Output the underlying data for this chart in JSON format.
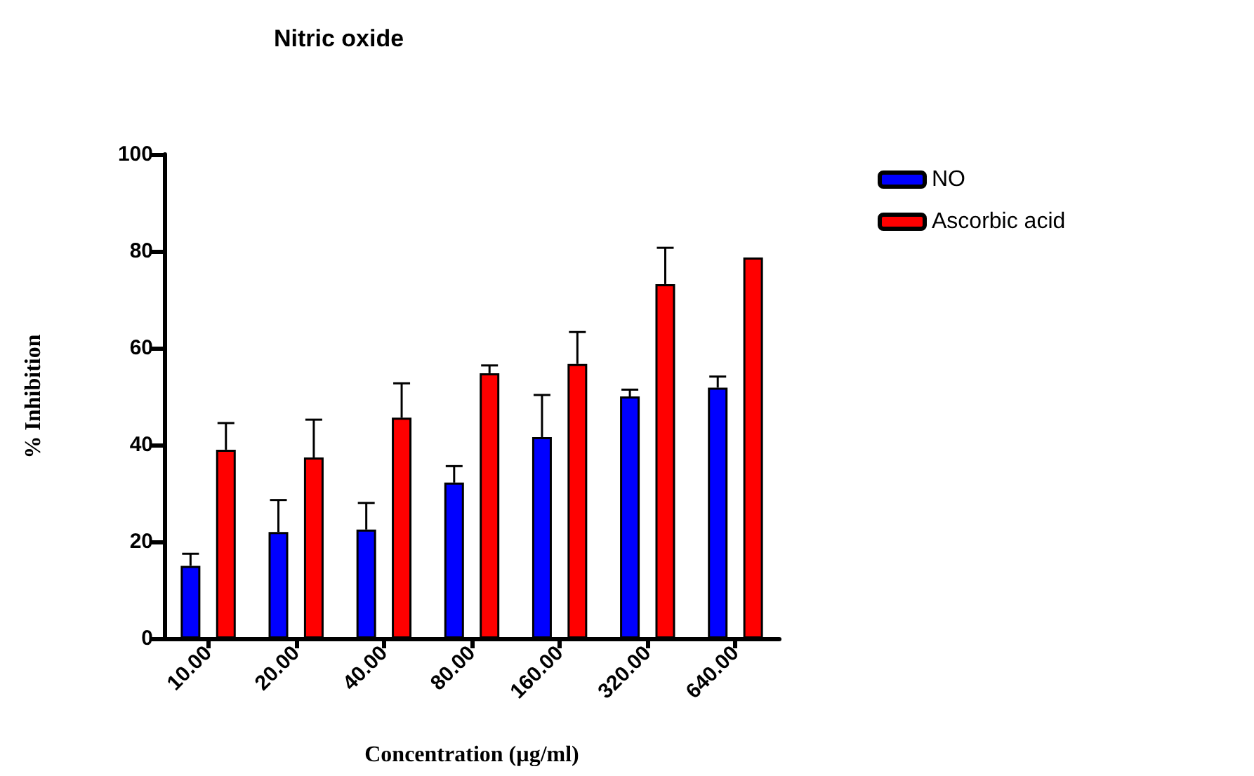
{
  "chart_data": {
    "type": "bar",
    "title": "Nitric oxide",
    "xlabel": "Concentration (µg/ml)",
    "ylabel": "% Inhibition",
    "categories": [
      "10.00",
      "20.00",
      "40.00",
      "80.00",
      "160.00",
      "320.00",
      "640.00"
    ],
    "series": [
      {
        "name": "NO",
        "color": "#0000ff",
        "values": [
          15,
          22,
          22.5,
          32.2,
          41.6,
          50,
          51.8
        ],
        "errors": [
          [
            15,
            17.5
          ],
          [
            22,
            28.6
          ],
          [
            22.5,
            28
          ],
          [
            32.2,
            35.6
          ],
          [
            41.6,
            50.3
          ],
          [
            50,
            51.4
          ],
          [
            51.8,
            54.1
          ]
        ]
      },
      {
        "name": "Ascorbic acid",
        "color": "#ff0000",
        "values": [
          39,
          37.4,
          45.6,
          54.8,
          56.7,
          73.2,
          78.7
        ],
        "errors": [
          [
            39,
            44.5
          ],
          [
            37.4,
            45.2
          ],
          [
            45.6,
            52.7
          ],
          [
            54.8,
            56.4
          ],
          [
            56.7,
            63.3
          ],
          [
            73.2,
            80.7
          ],
          null
        ]
      }
    ],
    "ylim": [
      0,
      100
    ],
    "yticks": [
      0,
      20,
      40,
      60,
      80,
      100
    ],
    "grid": false,
    "legend": "top right"
  }
}
